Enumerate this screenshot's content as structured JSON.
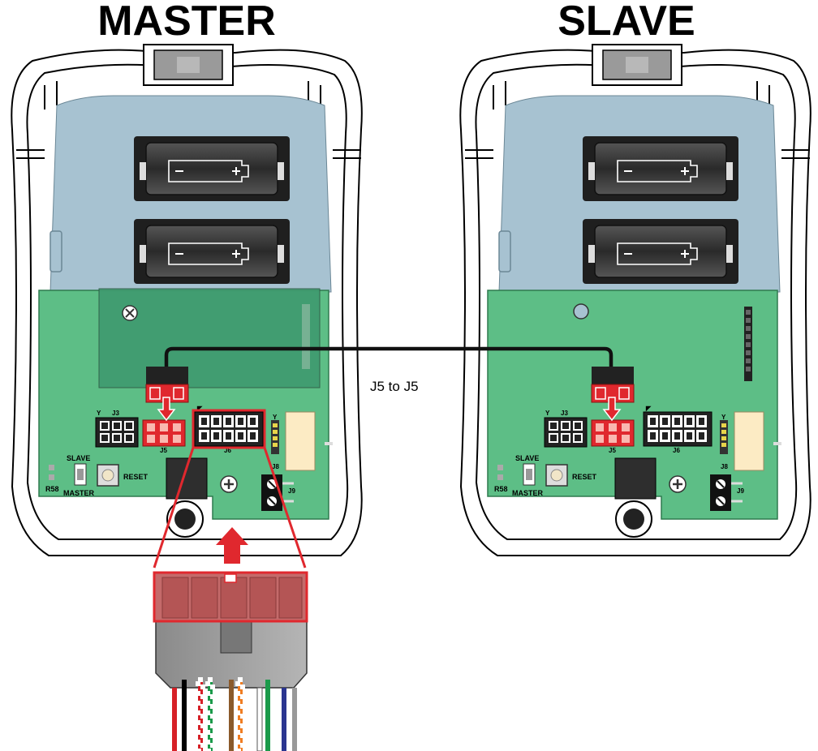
{
  "titles": {
    "master": "MASTER",
    "slave": "SLAVE"
  },
  "connection_label": "J5 to J5",
  "board_labels": {
    "j3": "J3",
    "j5": "J5",
    "j6": "J6",
    "j8": "J8",
    "j9": "J9",
    "slave": "SLAVE",
    "master": "MASTER",
    "reset": "RESET",
    "r58": "R58"
  },
  "colors": {
    "board_green": "#5dbe86",
    "battery_blue": "#a7c2d1",
    "highlight_red": "#e0282e",
    "cable": "#111111"
  },
  "wire_colors": [
    "#d62027",
    "#000000",
    "#d62027",
    "#1a9a4a",
    "#8a5a2b",
    "#f07d22",
    "#ffffff",
    "#1a9a4a",
    "#2b3590",
    "#999999"
  ]
}
